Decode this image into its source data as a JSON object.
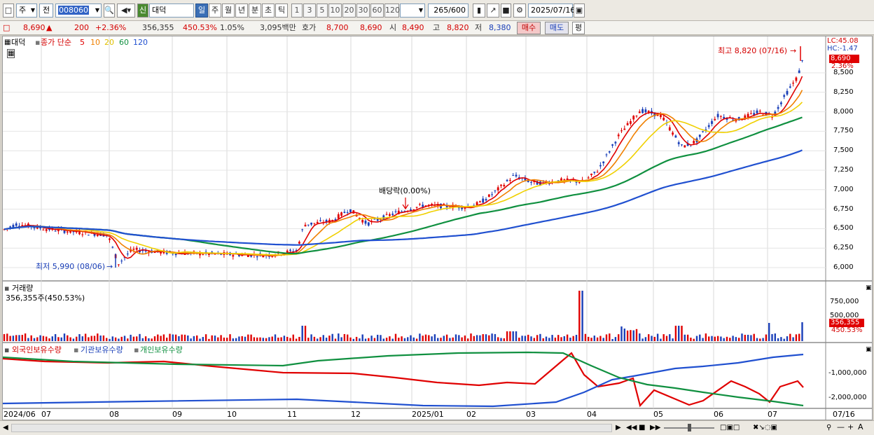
{
  "toolbar": {
    "market": "주",
    "prev_label": "전",
    "code": "008060",
    "new_badge": "신",
    "stock_name": "대덕",
    "periods": [
      "일",
      "주",
      "월",
      "년",
      "분",
      "초",
      "틱"
    ],
    "period_selected": "일",
    "intervals": [
      "1",
      "3",
      "5",
      "10",
      "20",
      "30",
      "60",
      "120"
    ],
    "count": "265",
    "count_total": "/600",
    "date": "2025/07/16"
  },
  "quote": {
    "price": "8,690",
    "up_arrow": "▲",
    "change": "200",
    "change_pct": "+2.36%",
    "volume": "356,355",
    "volume_ratio": "450.53%",
    "turnover": "1.05%",
    "amount": "3,095백만",
    "hoga_label": "호가",
    "ask": "8,700",
    "bid": "8,690",
    "open_label": "시",
    "open": "8,490",
    "high_label": "고",
    "high": "8,820",
    "low_label": "저",
    "low": "8,380",
    "buy_label": "매수",
    "sell_label": "매도",
    "eval_label": "평"
  },
  "price_panel": {
    "tab_name": "대덕",
    "ma_label": "종가 단순",
    "ma_periods": [
      "5",
      "10",
      "20",
      "60",
      "120"
    ],
    "ma_colors": [
      "#e00000",
      "#f08000",
      "#f0d000",
      "#109040",
      "#2050d0"
    ],
    "lc": "LC:45.08",
    "hc": "HC:-1.47",
    "last_price": "8,690",
    "last_pct": "2.36%",
    "high_note": "최고 8,820 (07/16)",
    "low_note": "최저 5,990 (08/06)",
    "dividend_note": "배당락(0.00%)",
    "y_ticks": [
      "8,500",
      "8,250",
      "8,000",
      "7,750",
      "7,500",
      "7,250",
      "7,000",
      "6,750",
      "6,500",
      "6,250",
      "6,000"
    ]
  },
  "volume_panel": {
    "title": "거래량",
    "info": "356,355주(450.53%)",
    "y_ticks": [
      "750,000",
      "500,000"
    ],
    "last_volume": "356,355",
    "last_pct": "450.53%"
  },
  "holdings_panel": {
    "legend": [
      "외국인보유수량",
      "기관보유수량",
      "개인보유수량"
    ],
    "legend_colors": [
      "#e00000",
      "#2050d0",
      "#109040"
    ],
    "y_ticks": [
      "-1,000,000",
      "-2,000,000"
    ]
  },
  "x_axis": [
    "2024/06",
    "07",
    "08",
    "09",
    "10",
    "11",
    "12",
    "2025/01",
    "02",
    "03",
    "04",
    "05",
    "06",
    "07",
    "07/16"
  ]
}
